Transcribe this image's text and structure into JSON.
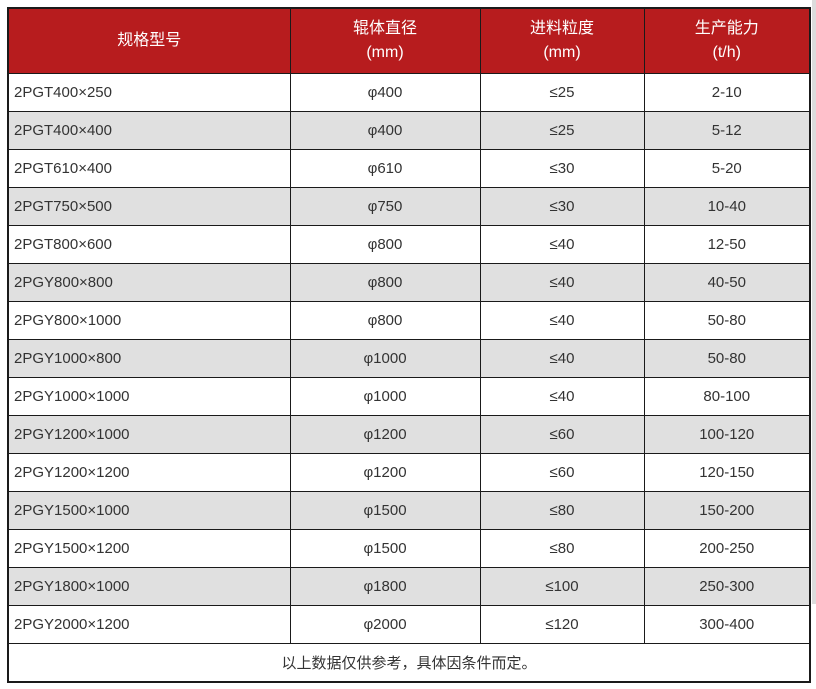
{
  "colors": {
    "header_bg": "#b71c1e",
    "header_text": "#ffffff",
    "row_bg": "#ffffff",
    "row_alt_bg": "#e0e0e0",
    "border": "#1a1a1a",
    "body_text": "#333333"
  },
  "chart_data": {
    "type": "table",
    "columns": [
      {
        "label": "规格型号",
        "unit": ""
      },
      {
        "label": "辊体直径",
        "unit": "(mm)"
      },
      {
        "label": "进料粒度",
        "unit": "(mm)"
      },
      {
        "label": "生产能力",
        "unit": "(t/h)"
      }
    ],
    "rows": [
      [
        "2PGT400×250",
        "φ400",
        "≤25",
        "2-10"
      ],
      [
        "2PGT400×400",
        "φ400",
        "≤25",
        "5-12"
      ],
      [
        "2PGT610×400",
        "φ610",
        "≤30",
        "5-20"
      ],
      [
        "2PGT750×500",
        "φ750",
        "≤30",
        "10-40"
      ],
      [
        "2PGT800×600",
        "φ800",
        "≤40",
        "12-50"
      ],
      [
        "2PGY800×800",
        "φ800",
        "≤40",
        "40-50"
      ],
      [
        "2PGY800×1000",
        "φ800",
        "≤40",
        "50-80"
      ],
      [
        "2PGY1000×800",
        "φ1000",
        "≤40",
        "50-80"
      ],
      [
        "2PGY1000×1000",
        "φ1000",
        "≤40",
        "80-100"
      ],
      [
        "2PGY1200×1000",
        "φ1200",
        "≤60",
        "100-120"
      ],
      [
        "2PGY1200×1200",
        "φ1200",
        "≤60",
        "120-150"
      ],
      [
        "2PGY1500×1000",
        "φ1500",
        "≤80",
        "150-200"
      ],
      [
        "2PGY1500×1200",
        "φ1500",
        "≤80",
        "200-250"
      ],
      [
        "2PGY1800×1000",
        "φ1800",
        "≤100",
        "250-300"
      ],
      [
        "2PGY2000×1200",
        "φ2000",
        "≤120",
        "300-400"
      ]
    ],
    "footnote": "以上数据仅供参考，具体因条件而定。"
  }
}
